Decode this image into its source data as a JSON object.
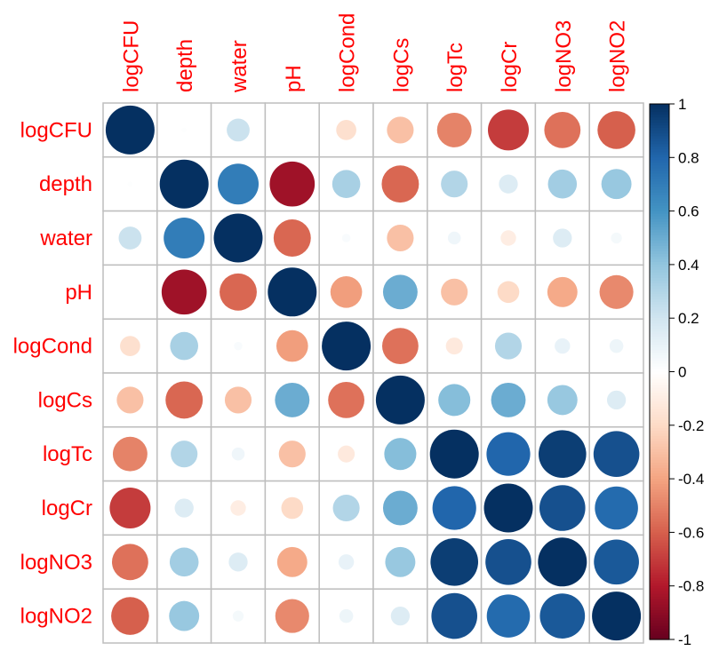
{
  "chart_data": {
    "type": "heatmap",
    "subtype": "correlation-circle-matrix",
    "variables": [
      "logCFU",
      "depth",
      "water",
      "pH",
      "logCond",
      "logCs",
      "logTc",
      "logCr",
      "logNO3",
      "logNO2"
    ],
    "matrix": [
      [
        1.0,
        0.01,
        0.22,
        0.0,
        -0.17,
        -0.3,
        -0.5,
        -0.7,
        -0.55,
        -0.6
      ],
      [
        0.01,
        1.0,
        0.7,
        -0.85,
        0.33,
        -0.58,
        0.3,
        0.15,
        0.35,
        0.38
      ],
      [
        0.22,
        0.7,
        1.0,
        -0.58,
        0.03,
        -0.3,
        0.07,
        -0.1,
        0.15,
        0.05
      ],
      [
        0.0,
        -0.85,
        -0.58,
        1.0,
        -0.42,
        0.5,
        -0.3,
        -0.2,
        -0.38,
        -0.48
      ],
      [
        -0.17,
        0.33,
        0.03,
        -0.42,
        1.0,
        -0.55,
        -0.12,
        0.3,
        0.1,
        0.08
      ],
      [
        -0.3,
        -0.58,
        -0.3,
        0.5,
        -0.55,
        1.0,
        0.43,
        0.5,
        0.38,
        0.15
      ],
      [
        -0.5,
        0.3,
        0.07,
        -0.3,
        -0.12,
        0.43,
        1.0,
        0.8,
        0.95,
        0.88
      ],
      [
        -0.7,
        0.15,
        -0.1,
        -0.2,
        0.3,
        0.5,
        0.8,
        1.0,
        0.88,
        0.78
      ],
      [
        -0.55,
        0.35,
        0.15,
        -0.38,
        0.1,
        0.38,
        0.95,
        0.88,
        1.0,
        0.85
      ],
      [
        -0.6,
        0.38,
        0.05,
        -0.48,
        0.08,
        0.15,
        0.88,
        0.78,
        0.85,
        1.0
      ]
    ],
    "colorbar": {
      "range": [
        -1,
        1
      ],
      "tick_values": [
        1,
        0.8,
        0.6,
        0.4,
        0.2,
        0,
        -0.2,
        -0.4,
        -0.6,
        -0.8,
        -1
      ],
      "tick_labels": [
        "1",
        "0.8",
        "0.6",
        "0.4",
        "0.2",
        "0",
        "-0.2",
        "-0.4",
        "-0.6",
        "-0.8",
        "-1"
      ]
    },
    "colors": {
      "negative_end": "#67001f",
      "positive_end": "#053061",
      "label": "#ff0000",
      "grid": "#bebebe",
      "text": "#000000"
    }
  }
}
